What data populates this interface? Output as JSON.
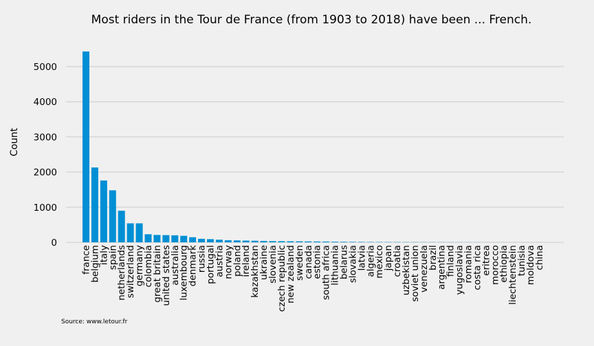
{
  "chart_data": {
    "type": "bar",
    "title": "Most riders in the Tour de France (from 1903 to 2018) have been ... French.",
    "xlabel": "",
    "ylabel": "Count",
    "ylim": [
      0,
      5600
    ],
    "yticks": [
      0,
      1000,
      2000,
      3000,
      4000,
      5000
    ],
    "grid": "horizontal",
    "bar_color": "#008fd5",
    "categories": [
      "france",
      "belgium",
      "italy",
      "spain",
      "netherlands",
      "switzerland",
      "germany",
      "colombia",
      "great britain",
      "united states",
      "australia",
      "luxembourg",
      "denmark",
      "russia",
      "portugal",
      "austria",
      "norway",
      "poland",
      "ireland",
      "kazakhstan",
      "ukraine",
      "slovenia",
      "czech republic",
      "new zealand",
      "sweden",
      "canada",
      "estonia",
      "south africa",
      "lithuania",
      "belarus",
      "slovakia",
      "latvia",
      "algeria",
      "mexico",
      "japan",
      "croatia",
      "uzbekistan",
      "soviet union",
      "venezuela",
      "brazil",
      "argentina",
      "finland",
      "yugoslavia",
      "romania",
      "costa rica",
      "eritrea",
      "morocco",
      "ethiopia",
      "liechtenstein",
      "tunisia",
      "moldova",
      "china"
    ],
    "values": [
      5430,
      2130,
      1760,
      1480,
      900,
      540,
      540,
      230,
      210,
      205,
      200,
      185,
      145,
      100,
      90,
      75,
      60,
      55,
      50,
      45,
      40,
      35,
      33,
      30,
      28,
      26,
      24,
      22,
      18,
      16,
      14,
      12,
      10,
      9,
      8,
      7,
      6,
      6,
      5,
      5,
      4,
      4,
      3,
      3,
      3,
      2,
      2,
      2,
      1,
      1,
      1,
      1
    ],
    "source_note": "Source: www.letour.fr"
  }
}
